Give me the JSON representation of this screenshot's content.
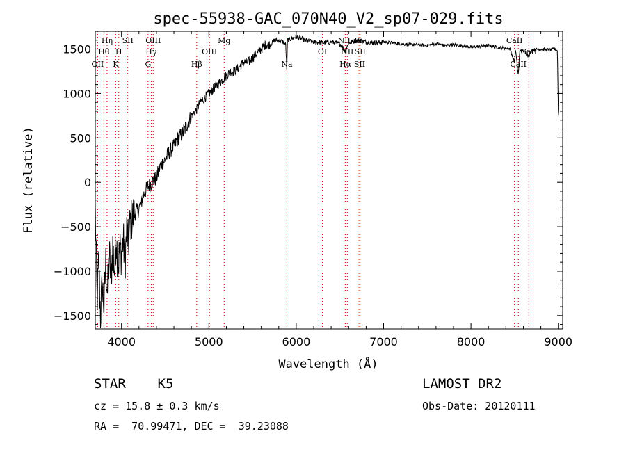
{
  "chart_data": {
    "type": "line",
    "title": "spec-55938-GAC_070N40_V2_sp07-029.fits",
    "xlabel": "Wavelength (Å)",
    "ylabel": "Flux (relative)",
    "xlim": [
      3700,
      9050
    ],
    "ylim": [
      -1650,
      1700
    ],
    "x_ticks": [
      4000,
      5000,
      6000,
      7000,
      8000,
      9000
    ],
    "y_ticks": [
      -1500,
      -1000,
      -500,
      0,
      500,
      1000,
      1500
    ],
    "grid": false,
    "series": [
      {
        "x": [
          3700,
          3720,
          3740,
          3760,
          3780,
          3800,
          3820,
          3840,
          3860,
          3880,
          3900,
          3920,
          3940,
          3960,
          3980,
          4000,
          4020,
          4040,
          4060,
          4080,
          4100,
          4150,
          4200,
          4250,
          4300,
          4350,
          4400,
          4450,
          4500,
          4550,
          4600,
          4650,
          4700,
          4750,
          4800,
          4850,
          4900,
          4950,
          5000,
          5050,
          5100,
          5150,
          5200,
          5250,
          5300,
          5350,
          5400,
          5450,
          5500,
          5550,
          5600,
          5650,
          5700,
          5750,
          5800,
          5850,
          5880,
          5893,
          5900,
          5950,
          6000,
          6100,
          6200,
          6300,
          6400,
          6500,
          6563,
          6600,
          6700,
          6800,
          6900,
          7000,
          7100,
          7200,
          7300,
          7400,
          7500,
          7600,
          7700,
          7800,
          7900,
          8000,
          8100,
          8200,
          8300,
          8400,
          8450,
          8498,
          8510,
          8542,
          8560,
          8600,
          8662,
          8700,
          8800,
          8900,
          8960,
          8990,
          9000,
          9010
        ],
        "y": [
          -300,
          -1350,
          -900,
          -1500,
          -1150,
          -1400,
          -900,
          -1250,
          -800,
          -1100,
          -700,
          -1000,
          -600,
          -950,
          -750,
          -800,
          -650,
          -900,
          -550,
          -700,
          -450,
          -350,
          -300,
          -150,
          -50,
          0,
          50,
          200,
          250,
          350,
          400,
          500,
          550,
          650,
          750,
          800,
          900,
          950,
          1000,
          1050,
          1100,
          1150,
          1200,
          1250,
          1250,
          1300,
          1350,
          1350,
          1400,
          1450,
          1500,
          1550,
          1550,
          1600,
          1600,
          1580,
          1550,
          1250,
          1600,
          1620,
          1640,
          1600,
          1580,
          1570,
          1580,
          1560,
          1480,
          1570,
          1600,
          1580,
          1570,
          1580,
          1570,
          1560,
          1550,
          1550,
          1540,
          1560,
          1540,
          1550,
          1540,
          1520,
          1530,
          1540,
          1520,
          1510,
          1500,
          1350,
          1500,
          1200,
          1490,
          1480,
          1420,
          1490,
          1500,
          1490,
          1500,
          1480,
          800,
          700
        ]
      }
    ],
    "annotations": [
      {
        "label": "OII",
        "x": 3727,
        "row": 3
      },
      {
        "label": "Hθ",
        "x": 3798,
        "row": 2
      },
      {
        "label": "Hη",
        "x": 3835,
        "row": 1
      },
      {
        "label": "K",
        "x": 3934,
        "row": 3
      },
      {
        "label": "H",
        "x": 3969,
        "row": 2
      },
      {
        "label": "SII",
        "x": 4072,
        "row": 1
      },
      {
        "label": "G",
        "x": 4304,
        "row": 3
      },
      {
        "label": "Hγ",
        "x": 4340,
        "row": 2
      },
      {
        "label": "OIII",
        "x": 4363,
        "row": 1
      },
      {
        "label": "Hβ",
        "x": 4861,
        "row": 3
      },
      {
        "label": "OIII",
        "x": 5007,
        "row": 2
      },
      {
        "label": "Mg",
        "x": 5175,
        "row": 1
      },
      {
        "label": "Na",
        "x": 5893,
        "row": 3
      },
      {
        "label": "OI",
        "x": 6300,
        "row": 2
      },
      {
        "label": "Hα",
        "x": 6563,
        "row": 3
      },
      {
        "label": "NII",
        "x": 6584,
        "row": 2
      },
      {
        "label": "NII",
        "x": 6548,
        "row": 1
      },
      {
        "label": "Li",
        "x": 6708,
        "row": 1
      },
      {
        "label": "SII",
        "x": 6725,
        "row": 3
      },
      {
        "label": "SII",
        "x": 6731,
        "row": 2
      },
      {
        "label": "CaII",
        "x": 8498,
        "row": 1
      },
      {
        "label": "CaII",
        "x": 8542,
        "row": 3
      },
      {
        "label": "CaII",
        "x": 8662,
        "row": 2
      }
    ],
    "line_color": "#000000",
    "marker_line_color": "#cc0000"
  },
  "footer": {
    "object_class": "STAR    K5",
    "survey": "LAMOST DR2",
    "redshift": "cz = 15.8 ± 0.3 km/s",
    "obs_date": "Obs-Date: 20120111",
    "coords": "RA =  70.99471, DEC =  39.23088"
  }
}
